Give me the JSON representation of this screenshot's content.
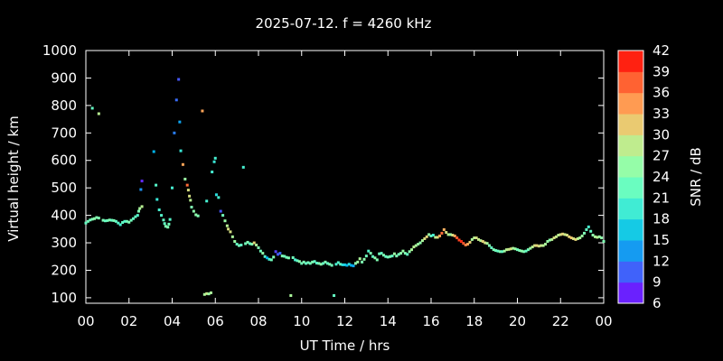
{
  "title": "2025-07-12. f = 4260 kHz",
  "chart_data": {
    "type": "scatter",
    "title": "2025-07-12. f = 4260 kHz",
    "xlabel": "UT Time / hrs",
    "ylabel": "Virtual height / km",
    "xlim": [
      0,
      24
    ],
    "ylim": [
      80,
      1000
    ],
    "x_ticks": [
      "00",
      "02",
      "04",
      "06",
      "08",
      "10",
      "12",
      "14",
      "16",
      "18",
      "20",
      "22",
      "00"
    ],
    "y_ticks": [
      100,
      200,
      300,
      400,
      500,
      600,
      700,
      800,
      900,
      1000
    ],
    "colorbar": {
      "label": "SNR / dB",
      "min": 6,
      "max": 42,
      "ticks": [
        6,
        9,
        12,
        15,
        18,
        21,
        24,
        27,
        30,
        33,
        36,
        39,
        42
      ]
    },
    "background": "#000000",
    "points": [
      [
        0.0,
        372,
        22
      ],
      [
        0.1,
        378,
        23
      ],
      [
        0.2,
        383,
        23
      ],
      [
        0.3,
        386,
        24
      ],
      [
        0.4,
        388,
        25
      ],
      [
        0.5,
        392,
        24
      ],
      [
        0.6,
        390,
        24
      ],
      [
        0.8,
        382,
        24
      ],
      [
        0.9,
        380,
        22
      ],
      [
        1.0,
        381,
        23
      ],
      [
        1.1,
        383,
        24
      ],
      [
        1.2,
        382,
        22
      ],
      [
        1.3,
        381,
        24
      ],
      [
        1.4,
        378,
        22
      ],
      [
        1.5,
        372,
        21
      ],
      [
        1.6,
        366,
        20
      ],
      [
        1.7,
        374,
        22
      ],
      [
        1.8,
        378,
        21
      ],
      [
        1.9,
        378,
        23
      ],
      [
        2.0,
        375,
        24
      ],
      [
        2.1,
        382,
        23
      ],
      [
        2.2,
        388,
        22
      ],
      [
        2.3,
        395,
        22
      ],
      [
        2.4,
        400,
        21
      ],
      [
        2.45,
        415,
        24
      ],
      [
        2.5,
        425,
        27
      ],
      [
        2.6,
        432,
        28
      ],
      [
        2.55,
        494,
        13
      ],
      [
        2.6,
        525,
        8
      ],
      [
        0.3,
        790,
        22
      ],
      [
        0.6,
        770,
        28
      ],
      [
        3.15,
        632,
        15
      ],
      [
        3.25,
        510,
        21
      ],
      [
        3.3,
        458,
        19
      ],
      [
        3.4,
        420,
        20
      ],
      [
        3.5,
        400,
        21
      ],
      [
        3.6,
        383,
        22
      ],
      [
        3.65,
        370,
        22
      ],
      [
        3.7,
        360,
        24
      ],
      [
        3.8,
        357,
        24
      ],
      [
        3.85,
        368,
        23
      ],
      [
        3.9,
        385,
        21
      ],
      [
        4.0,
        500,
        20
      ],
      [
        4.1,
        700,
        12
      ],
      [
        4.2,
        820,
        11
      ],
      [
        4.3,
        895,
        10
      ],
      [
        4.35,
        740,
        14
      ],
      [
        4.4,
        635,
        19
      ],
      [
        4.5,
        585,
        34
      ],
      [
        4.6,
        532,
        26
      ],
      [
        4.7,
        510,
        37
      ],
      [
        4.75,
        492,
        30
      ],
      [
        4.8,
        470,
        30
      ],
      [
        4.85,
        455,
        28
      ],
      [
        4.9,
        430,
        24
      ],
      [
        5.0,
        415,
        25
      ],
      [
        5.1,
        402,
        25
      ],
      [
        5.2,
        398,
        24
      ],
      [
        5.4,
        780,
        34
      ],
      [
        5.5,
        112,
        27
      ],
      [
        5.6,
        115,
        29
      ],
      [
        5.7,
        114,
        26
      ],
      [
        5.8,
        118,
        27
      ],
      [
        5.6,
        452,
        20
      ],
      [
        5.85,
        558,
        20
      ],
      [
        5.95,
        595,
        19
      ],
      [
        6.0,
        608,
        20
      ],
      [
        6.05,
        475,
        18
      ],
      [
        6.15,
        465,
        20
      ],
      [
        6.25,
        415,
        10
      ],
      [
        6.35,
        400,
        23
      ],
      [
        6.45,
        380,
        26
      ],
      [
        6.55,
        362,
        28
      ],
      [
        6.6,
        350,
        30
      ],
      [
        6.7,
        340,
        30
      ],
      [
        6.8,
        322,
        27
      ],
      [
        6.9,
        305,
        26
      ],
      [
        7.0,
        295,
        22
      ],
      [
        7.1,
        290,
        23
      ],
      [
        7.2,
        292,
        22
      ],
      [
        7.3,
        575,
        20
      ],
      [
        7.4,
        297,
        23
      ],
      [
        7.5,
        302,
        24
      ],
      [
        7.6,
        297,
        22
      ],
      [
        7.7,
        295,
        24
      ],
      [
        7.8,
        300,
        31
      ],
      [
        7.9,
        292,
        27
      ],
      [
        8.0,
        282,
        24
      ],
      [
        8.1,
        270,
        23
      ],
      [
        8.2,
        262,
        25
      ],
      [
        8.3,
        250,
        21
      ],
      [
        8.4,
        245,
        15
      ],
      [
        8.5,
        240,
        20
      ],
      [
        8.6,
        238,
        23
      ],
      [
        8.7,
        248,
        24
      ],
      [
        8.8,
        268,
        9
      ],
      [
        8.9,
        258,
        10
      ],
      [
        9.0,
        262,
        11
      ],
      [
        9.1,
        252,
        24
      ],
      [
        9.2,
        251,
        23
      ],
      [
        9.3,
        247,
        23
      ],
      [
        9.4,
        245,
        24
      ],
      [
        9.5,
        108,
        27
      ],
      [
        9.6,
        246,
        23
      ],
      [
        9.7,
        238,
        20
      ],
      [
        9.8,
        235,
        22
      ],
      [
        9.9,
        232,
        25
      ],
      [
        10.0,
        225,
        23
      ],
      [
        10.1,
        230,
        24
      ],
      [
        10.2,
        225,
        22
      ],
      [
        10.3,
        228,
        23
      ],
      [
        10.4,
        225,
        23
      ],
      [
        10.5,
        230,
        24
      ],
      [
        10.6,
        232,
        22
      ],
      [
        10.7,
        226,
        21
      ],
      [
        10.8,
        225,
        24
      ],
      [
        10.9,
        222,
        25
      ],
      [
        11.0,
        225,
        22
      ],
      [
        11.1,
        230,
        24
      ],
      [
        11.2,
        225,
        22
      ],
      [
        11.3,
        222,
        24
      ],
      [
        11.4,
        218,
        23
      ],
      [
        11.5,
        108,
        22
      ],
      [
        11.6,
        222,
        20
      ],
      [
        11.7,
        228,
        21
      ],
      [
        11.8,
        222,
        22
      ],
      [
        11.9,
        220,
        18
      ],
      [
        12.0,
        220,
        17
      ],
      [
        12.1,
        218,
        15
      ],
      [
        12.2,
        222,
        18
      ],
      [
        12.3,
        218,
        15
      ],
      [
        12.4,
        216,
        14
      ],
      [
        12.5,
        225,
        25
      ],
      [
        12.6,
        230,
        26
      ],
      [
        12.7,
        242,
        27
      ],
      [
        12.8,
        230,
        24
      ],
      [
        12.9,
        240,
        25
      ],
      [
        13.0,
        252,
        23
      ],
      [
        13.1,
        270,
        21
      ],
      [
        13.2,
        262,
        24
      ],
      [
        13.3,
        250,
        22
      ],
      [
        13.4,
        245,
        25
      ],
      [
        13.5,
        238,
        24
      ],
      [
        13.6,
        260,
        23
      ],
      [
        13.7,
        262,
        22
      ],
      [
        13.8,
        255,
        24
      ],
      [
        13.9,
        250,
        22
      ],
      [
        14.0,
        248,
        23
      ],
      [
        14.1,
        250,
        24
      ],
      [
        14.2,
        252,
        22
      ],
      [
        14.3,
        260,
        26
      ],
      [
        14.4,
        252,
        24
      ],
      [
        14.5,
        258,
        23
      ],
      [
        14.6,
        262,
        25
      ],
      [
        14.7,
        270,
        26
      ],
      [
        14.8,
        262,
        24
      ],
      [
        14.9,
        258,
        22
      ],
      [
        15.0,
        268,
        25
      ],
      [
        15.1,
        275,
        27
      ],
      [
        15.2,
        285,
        28
      ],
      [
        15.3,
        290,
        27
      ],
      [
        15.4,
        295,
        26
      ],
      [
        15.5,
        300,
        25
      ],
      [
        15.6,
        308,
        27
      ],
      [
        15.7,
        315,
        30
      ],
      [
        15.8,
        322,
        31
      ],
      [
        15.9,
        330,
        26
      ],
      [
        16.0,
        325,
        22
      ],
      [
        16.1,
        328,
        20
      ],
      [
        16.2,
        320,
        28
      ],
      [
        16.3,
        320,
        30
      ],
      [
        16.4,
        325,
        34
      ],
      [
        16.5,
        335,
        37
      ],
      [
        16.6,
        348,
        33
      ],
      [
        16.7,
        338,
        30
      ],
      [
        16.8,
        330,
        28
      ],
      [
        16.9,
        330,
        26
      ],
      [
        17.0,
        328,
        30
      ],
      [
        17.1,
        325,
        34
      ],
      [
        17.2,
        318,
        38
      ],
      [
        17.3,
        310,
        39
      ],
      [
        17.4,
        305,
        40
      ],
      [
        17.5,
        298,
        38
      ],
      [
        17.6,
        292,
        36
      ],
      [
        17.7,
        295,
        34
      ],
      [
        17.8,
        302,
        31
      ],
      [
        17.9,
        312,
        27
      ],
      [
        18.0,
        318,
        28
      ],
      [
        18.1,
        318,
        30
      ],
      [
        18.2,
        312,
        29
      ],
      [
        18.3,
        308,
        28
      ],
      [
        18.4,
        305,
        31
      ],
      [
        18.5,
        300,
        30
      ],
      [
        18.6,
        298,
        27
      ],
      [
        18.7,
        290,
        24
      ],
      [
        18.8,
        282,
        22
      ],
      [
        18.9,
        275,
        24
      ],
      [
        19.0,
        272,
        23
      ],
      [
        19.1,
        270,
        22
      ],
      [
        19.2,
        268,
        24
      ],
      [
        19.3,
        268,
        22
      ],
      [
        19.4,
        270,
        26
      ],
      [
        19.5,
        275,
        28
      ],
      [
        19.6,
        276,
        29
      ],
      [
        19.7,
        278,
        30
      ],
      [
        19.8,
        280,
        27
      ],
      [
        19.9,
        278,
        26
      ],
      [
        20.0,
        275,
        23
      ],
      [
        20.1,
        272,
        24
      ],
      [
        20.2,
        270,
        25
      ],
      [
        20.3,
        268,
        24
      ],
      [
        20.4,
        270,
        22
      ],
      [
        20.5,
        275,
        23
      ],
      [
        20.6,
        280,
        26
      ],
      [
        20.7,
        285,
        28
      ],
      [
        20.8,
        290,
        30
      ],
      [
        20.9,
        290,
        31
      ],
      [
        21.0,
        288,
        30
      ],
      [
        21.1,
        290,
        29
      ],
      [
        21.2,
        290,
        28
      ],
      [
        21.3,
        295,
        27
      ],
      [
        21.4,
        305,
        26
      ],
      [
        21.5,
        310,
        25
      ],
      [
        21.6,
        312,
        28
      ],
      [
        21.7,
        318,
        30
      ],
      [
        21.8,
        322,
        29
      ],
      [
        21.9,
        328,
        28
      ],
      [
        22.0,
        330,
        30
      ],
      [
        22.1,
        332,
        31
      ],
      [
        22.2,
        330,
        29
      ],
      [
        22.3,
        328,
        30
      ],
      [
        22.4,
        322,
        31
      ],
      [
        22.5,
        318,
        32
      ],
      [
        22.6,
        315,
        30
      ],
      [
        22.7,
        312,
        31
      ],
      [
        22.8,
        315,
        28
      ],
      [
        22.9,
        318,
        27
      ],
      [
        23.0,
        325,
        26
      ],
      [
        23.1,
        335,
        24
      ],
      [
        23.2,
        348,
        22
      ],
      [
        23.3,
        358,
        20
      ],
      [
        23.4,
        342,
        22
      ],
      [
        23.5,
        328,
        25
      ],
      [
        23.6,
        322,
        27
      ],
      [
        23.7,
        320,
        28
      ],
      [
        23.8,
        322,
        26
      ],
      [
        23.9,
        318,
        25
      ],
      [
        24.0,
        305,
        24
      ]
    ]
  }
}
